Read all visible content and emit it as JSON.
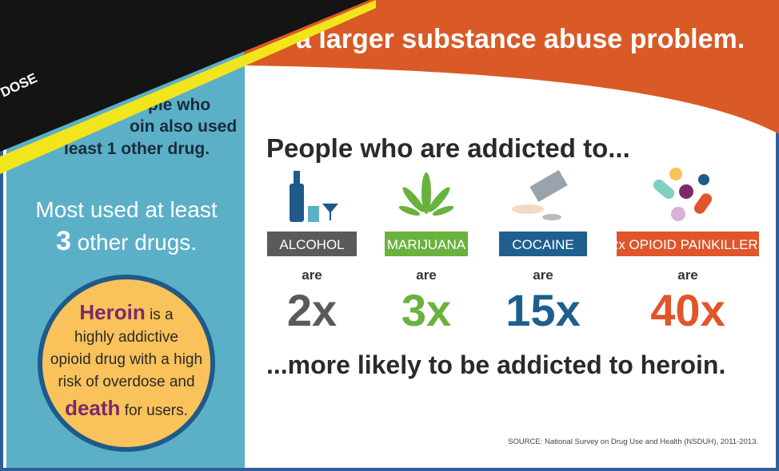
{
  "header": {
    "title": "a larger substance abuse problem."
  },
  "tape": {
    "text": "DOSE"
  },
  "sidebar": {
    "fragment_lines": [
      "ple who",
      "oin also used",
      "least 1 other drug."
    ],
    "most_used": {
      "before": "Most used at least",
      "number": "3",
      "after": "other drugs."
    },
    "circle": {
      "word1": "Heroin",
      "text1": " is a",
      "lines": [
        "highly addictive",
        "opioid drug with a high",
        "risk of overdose and"
      ],
      "word2": "death",
      "text2": " for users."
    }
  },
  "main": {
    "heading": "People who are addicted to...",
    "items": [
      {
        "label": "ALCOHOL",
        "are": "are",
        "multiplier": "2x"
      },
      {
        "label": "MARIJUANA",
        "are": "are",
        "multiplier": "3x"
      },
      {
        "label": "COCAINE",
        "are": "are",
        "multiplier": "15x"
      },
      {
        "label": "Rx OPIOID PAINKILLERS",
        "are": "are",
        "multiplier": "40x"
      }
    ],
    "footer": "...more likely to be addicted to heroin.",
    "source": "SOURCE: National Survey on Drug Use and Health (NSDUH), 2011-2013."
  }
}
